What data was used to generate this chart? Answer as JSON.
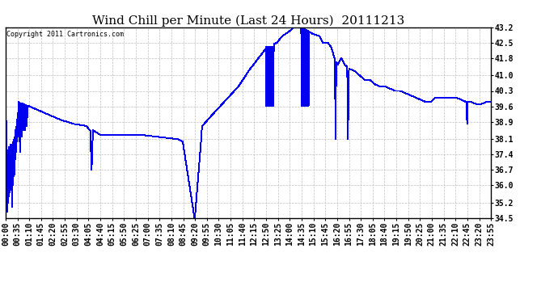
{
  "title": "Wind Chill per Minute (Last 24 Hours)  20111213",
  "copyright": "Copyright 2011 Cartronics.com",
  "line_color": "#0000ee",
  "bg_color": "#ffffff",
  "grid_color": "#c0c0c0",
  "ylim": [
    34.5,
    43.2
  ],
  "yticks": [
    34.5,
    35.2,
    36.0,
    36.7,
    37.4,
    38.1,
    38.9,
    39.6,
    40.3,
    41.0,
    41.8,
    42.5,
    43.2
  ],
  "title_fontsize": 11,
  "tick_fontsize": 7,
  "xtick_labels": [
    "00:00",
    "00:35",
    "01:10",
    "01:45",
    "02:20",
    "02:55",
    "03:30",
    "04:05",
    "04:40",
    "05:15",
    "05:50",
    "06:25",
    "07:00",
    "07:35",
    "08:10",
    "08:45",
    "09:20",
    "09:55",
    "10:30",
    "11:05",
    "11:40",
    "12:15",
    "12:50",
    "13:25",
    "14:00",
    "14:35",
    "15:10",
    "15:45",
    "16:20",
    "16:55",
    "17:30",
    "18:05",
    "18:40",
    "19:15",
    "19:50",
    "20:25",
    "21:00",
    "21:35",
    "22:10",
    "22:45",
    "23:20",
    "23:55"
  ]
}
